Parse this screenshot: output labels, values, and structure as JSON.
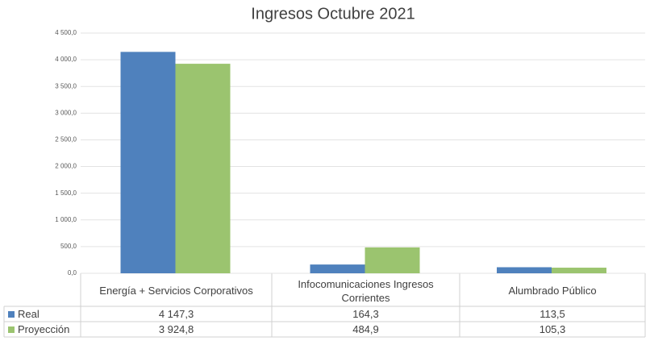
{
  "chart_data": {
    "type": "bar",
    "title": "Ingresos Octubre 2021",
    "categories": [
      "Energía + Servicios Corporativos",
      "Infocomunicaciones Ingresos Corrientes",
      "Alumbrado Público"
    ],
    "series": [
      {
        "name": "Real",
        "color": "#4f81bd",
        "values": [
          4147.3,
          164.3,
          113.5
        ],
        "value_labels": [
          "4 147,3",
          "164,3",
          "113,5"
        ]
      },
      {
        "name": "Proyección",
        "color": "#9bc46f",
        "values": [
          3924.8,
          484.9,
          105.3
        ],
        "value_labels": [
          "3 924,8",
          "484,9",
          "105,3"
        ]
      }
    ],
    "ylim": [
      0,
      4500
    ],
    "yticks": [
      {
        "value": 0,
        "label": "0,0"
      },
      {
        "value": 500,
        "label": "500,0"
      },
      {
        "value": 1000,
        "label": "1 000,0"
      },
      {
        "value": 1500,
        "label": "1 500,0"
      },
      {
        "value": 2000,
        "label": "2 000,0"
      },
      {
        "value": 2500,
        "label": "2 500,0"
      },
      {
        "value": 3000,
        "label": "3 000,0"
      },
      {
        "value": 3500,
        "label": "3 500,0"
      },
      {
        "value": 4000,
        "label": "4 000,0"
      },
      {
        "value": 4500,
        "label": "4 500,0"
      }
    ],
    "grid": true
  }
}
